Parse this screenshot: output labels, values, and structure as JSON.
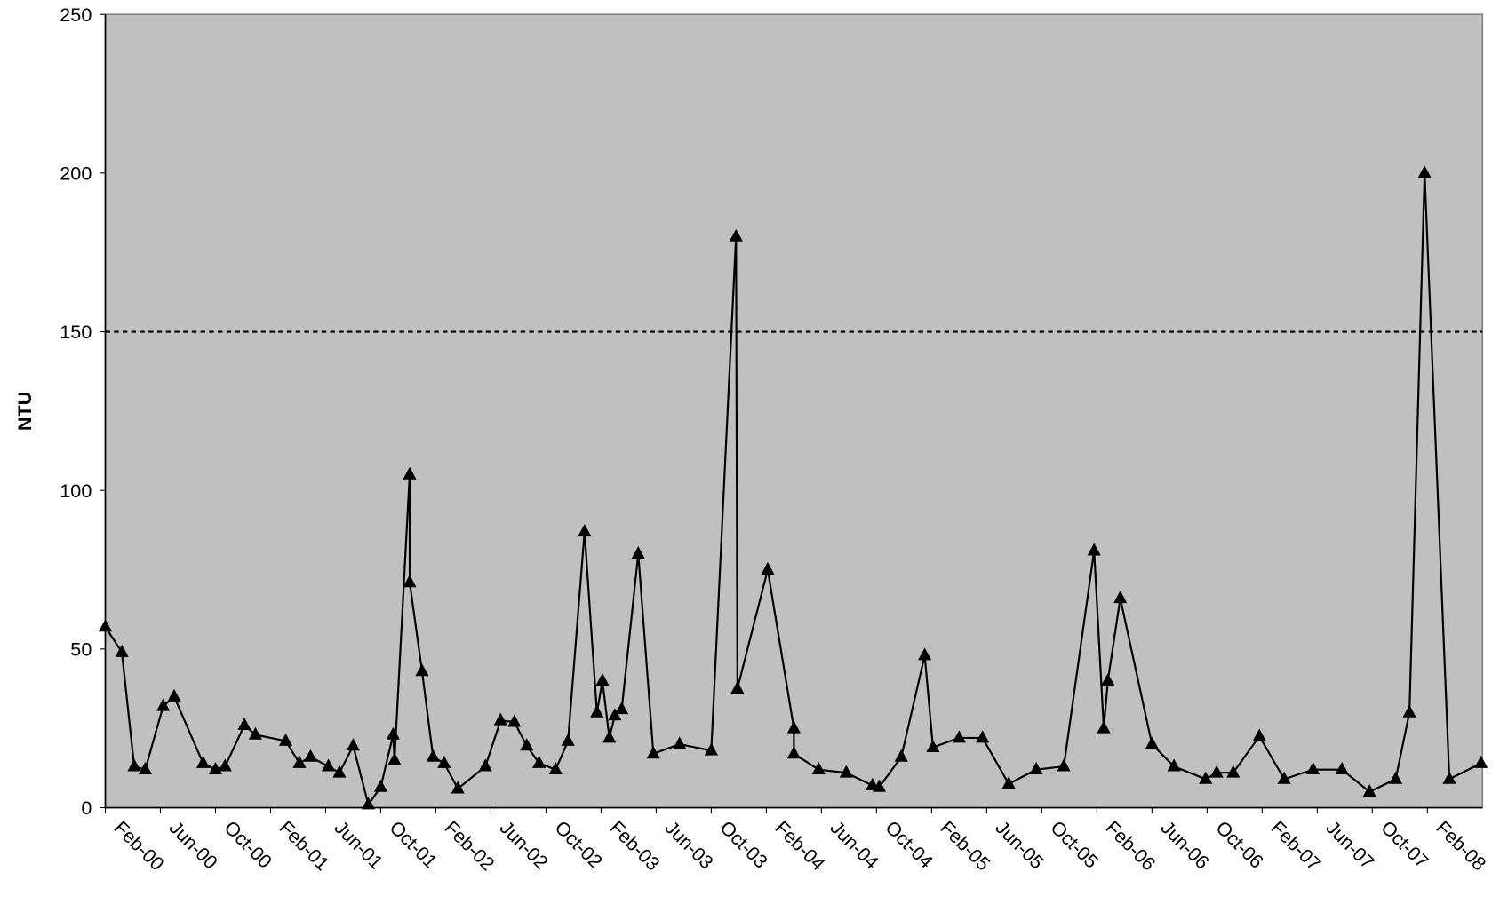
{
  "chart_data": {
    "type": "line",
    "y_label": "NTU",
    "x": [
      1,
      2.2,
      3.1,
      3.9,
      5.2,
      6.0,
      8.1,
      9.0,
      9.7,
      11.1,
      11.9,
      14.1,
      15.1,
      15.9,
      17.2,
      18.0,
      19.0,
      20.1,
      21.0,
      21.9,
      22.0,
      23.1,
      23.1,
      24.0,
      24.8,
      25.6,
      26.6,
      28.6,
      29.7,
      30.7,
      31.6,
      32.5,
      33.7,
      34.6,
      35.8,
      36.7,
      37.1,
      37.6,
      38.0,
      38.5,
      39.7,
      40.8,
      42.7,
      45.0,
      46.8,
      46.9,
      49.1,
      51.0,
      51.0,
      52.8,
      54.8,
      56.7,
      57.2,
      58.8,
      60.5,
      61.1,
      63.0,
      64.7,
      66.6,
      68.6,
      70.6,
      72.8,
      73.5,
      73.8,
      74.7,
      77.0,
      78.6,
      80.9,
      81.7,
      82.9,
      84.8,
      86.6,
      88.7,
      90.8,
      92.8,
      94.7,
      95.7,
      96.8,
      98.6,
      100.9
    ],
    "series": [
      {
        "color": "#000000",
        "values": [
          57,
          49,
          13,
          12,
          32,
          35,
          14,
          12,
          13,
          26,
          23,
          21,
          14,
          16,
          13,
          11,
          19.5,
          1,
          6.5,
          23,
          15,
          105,
          71,
          43,
          16,
          14,
          6,
          13,
          27.5,
          27,
          19.5,
          14,
          12,
          21,
          87,
          30,
          40,
          22,
          29,
          31,
          80,
          17,
          20,
          18,
          180,
          37.5,
          75,
          25,
          17,
          12,
          11,
          7,
          6.5,
          16,
          48,
          19,
          22,
          22,
          7.5,
          12,
          13,
          81,
          25,
          40,
          66,
          20,
          13,
          9,
          11,
          11,
          22.5,
          9,
          12,
          12,
          5,
          9,
          30,
          200,
          9,
          14
        ]
      }
    ],
    "reference_line": 150,
    "xlim": [
      1,
      101
    ],
    "xticks": [
      {
        "value": 1,
        "label": "Feb-00"
      },
      {
        "value": 5,
        "label": "Jun-00"
      },
      {
        "value": 9,
        "label": "Oct-00"
      },
      {
        "value": 13,
        "label": "Feb-01"
      },
      {
        "value": 17,
        "label": "Jun-01"
      },
      {
        "value": 21,
        "label": "Oct-01"
      },
      {
        "value": 25,
        "label": "Feb-02"
      },
      {
        "value": 29,
        "label": "Jun-02"
      },
      {
        "value": 33,
        "label": "Oct-02"
      },
      {
        "value": 37,
        "label": "Feb-03"
      },
      {
        "value": 41,
        "label": "Jun-03"
      },
      {
        "value": 45,
        "label": "Oct-03"
      },
      {
        "value": 49,
        "label": "Feb-04"
      },
      {
        "value": 53,
        "label": "Jun-04"
      },
      {
        "value": 57,
        "label": "Oct-04"
      },
      {
        "value": 61,
        "label": "Feb-05"
      },
      {
        "value": 65,
        "label": "Jun-05"
      },
      {
        "value": 69,
        "label": "Oct-05"
      },
      {
        "value": 73,
        "label": "Feb-06"
      },
      {
        "value": 77,
        "label": "Jun-06"
      },
      {
        "value": 81,
        "label": "Oct-06"
      },
      {
        "value": 85,
        "label": "Feb-07"
      },
      {
        "value": 89,
        "label": "Jun-07"
      },
      {
        "value": 93,
        "label": "Oct-07"
      },
      {
        "value": 97,
        "label": "Feb-08"
      }
    ],
    "ylim": [
      0,
      250
    ],
    "yticks": [
      0,
      50,
      100,
      150,
      200,
      250
    ],
    "plot_background": "#c0c0c0"
  }
}
